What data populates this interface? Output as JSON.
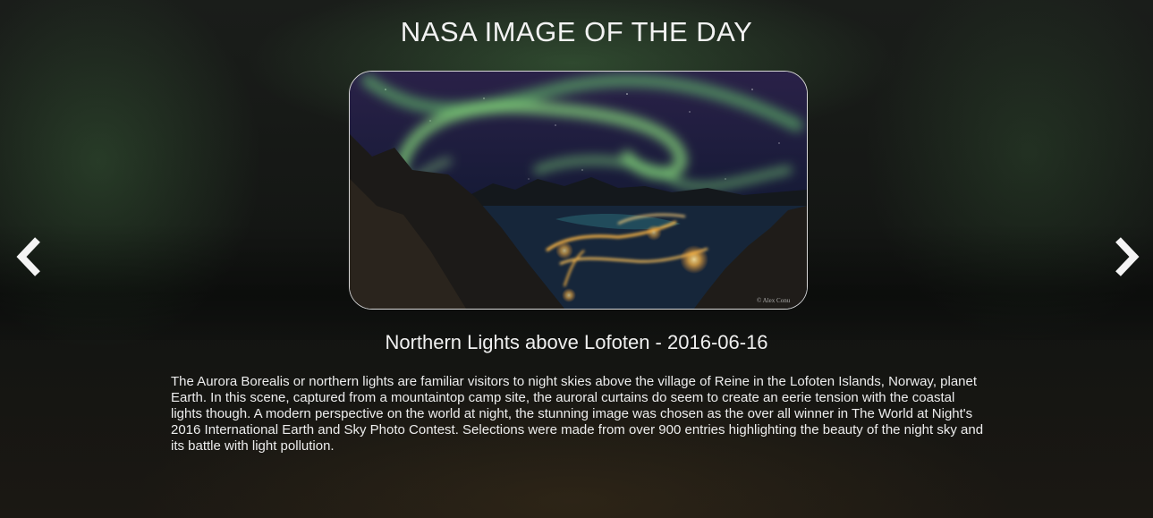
{
  "header": {
    "title": "NASA IMAGE OF THE DAY"
  },
  "image": {
    "credit": "© Alex Conu"
  },
  "caption": {
    "title": "Northern Lights above Lofoten",
    "separator": " - ",
    "date": "2016-06-16"
  },
  "explanation": "The Aurora Borealis or northern lights are familiar visitors to night skies above the village of Reine in the Lofoten Islands, Norway, planet Earth. In this scene, captured from a mountaintop camp site, the auroral curtains do seem to create an eerie tension with the coastal lights though. A modern perspective on the world at night, the stunning image was chosen as the over all winner in The World at Night's 2016 International Earth and Sky Photo Contest. Selections were made from over 900 entries highlighting the beauty of the night sky and its battle with light pollution.",
  "navigation": {
    "prev_icon": "chevron-left-icon",
    "next_icon": "chevron-right-icon"
  },
  "colors": {
    "aurora": "#7fd67a",
    "city_lights": "#ffb845",
    "background": "#141614"
  }
}
